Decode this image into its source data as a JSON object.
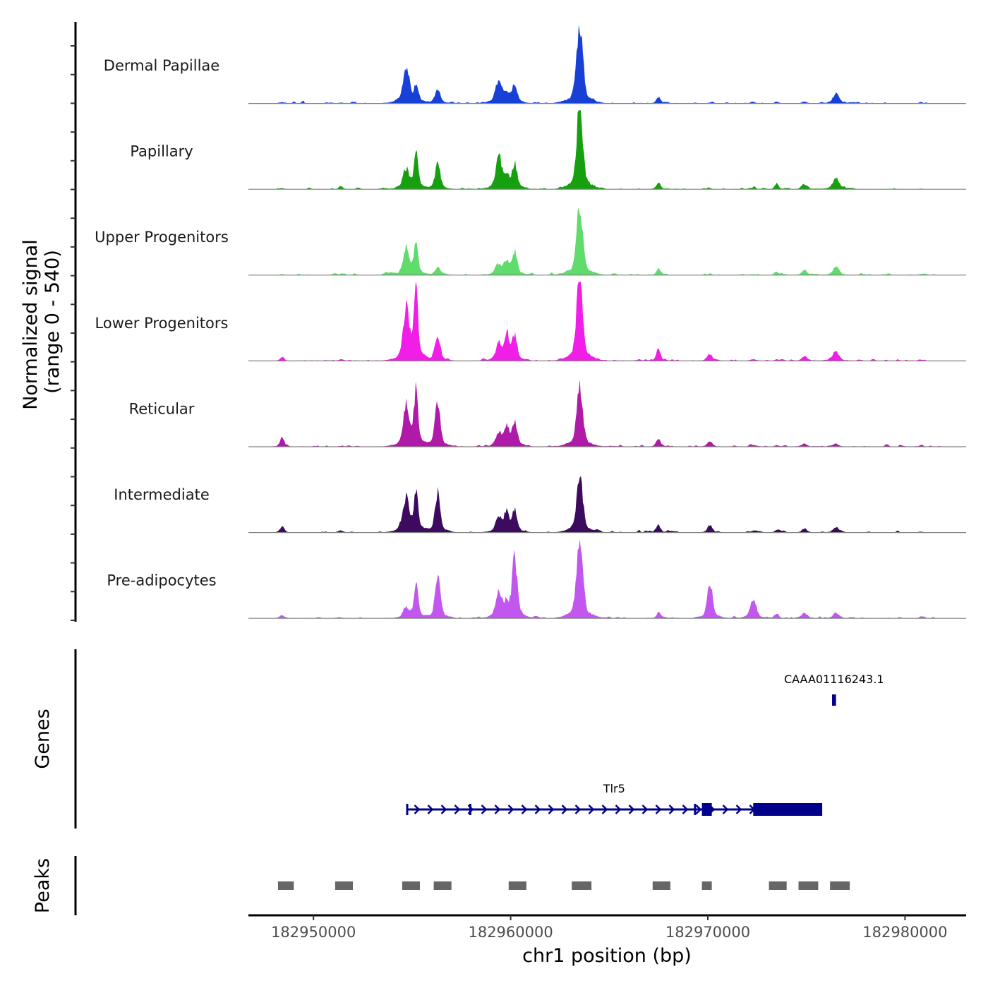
{
  "chart_data": {
    "type": "area",
    "title": "",
    "region": {
      "chrom": "chr1",
      "start": 182946700,
      "end": 182983100
    },
    "xlabel": "chr1 position (bp)",
    "ylabel": "Normalized signal",
    "ylabel_range": "(range 0 - 540)",
    "ylim": [
      0,
      540
    ],
    "x_ticks": [
      182950000,
      182960000,
      182970000,
      182980000
    ],
    "x_tick_labels": [
      "182950000",
      "182960000",
      "182970000",
      "182980000"
    ],
    "peak_centers_bp": [
      182948400,
      182951400,
      182954700,
      182955200,
      182956300,
      182959400,
      182959800,
      182960200,
      182963500,
      182967500,
      182970100,
      182972300,
      182973500,
      182974900,
      182976500,
      182980800
    ],
    "series": [
      {
        "name": "Dermal Papillae",
        "color": "#1740d6",
        "values": [
          8,
          5,
          230,
          100,
          90,
          140,
          60,
          120,
          490,
          40,
          5,
          5,
          10,
          10,
          55,
          4
        ]
      },
      {
        "name": "Papillary",
        "color": "#16a00f",
        "values": [
          8,
          6,
          120,
          230,
          150,
          180,
          80,
          150,
          500,
          40,
          5,
          5,
          30,
          30,
          70,
          4
        ]
      },
      {
        "name": "Upper Progenitors",
        "color": "#5fdc6b",
        "values": [
          6,
          5,
          160,
          180,
          50,
          60,
          80,
          140,
          430,
          40,
          5,
          5,
          15,
          30,
          50,
          6
        ]
      },
      {
        "name": "Lower Progenitors",
        "color": "#f11ee7",
        "values": [
          20,
          10,
          310,
          440,
          150,
          100,
          170,
          150,
          510,
          70,
          40,
          10,
          10,
          30,
          55,
          8
        ]
      },
      {
        "name": "Reticular",
        "color": "#b01aa8",
        "values": [
          55,
          5,
          250,
          330,
          270,
          80,
          130,
          150,
          360,
          45,
          35,
          10,
          10,
          20,
          15,
          8
        ]
      },
      {
        "name": "Intermediate",
        "color": "#3c0a5e",
        "values": [
          35,
          10,
          210,
          250,
          240,
          90,
          130,
          140,
          340,
          45,
          40,
          10,
          15,
          25,
          30,
          6
        ]
      },
      {
        "name": "Pre-adipocytes",
        "color": "#c157ef",
        "values": [
          20,
          5,
          60,
          210,
          250,
          150,
          70,
          360,
          490,
          35,
          220,
          110,
          25,
          30,
          30,
          10
        ]
      }
    ],
    "genes": [
      {
        "name": "Tlr5",
        "start": 182954700,
        "end": 182975800,
        "strand": "+",
        "exons": [
          [
            182954700,
            182954800
          ],
          [
            182957900,
            182958000
          ],
          [
            182969300,
            182969400
          ],
          [
            182969700,
            182970200
          ],
          [
            182972300,
            182975800
          ]
        ]
      },
      {
        "name": "CAAA01116243.1",
        "start": 182976300,
        "end": 182976500,
        "strand": "-",
        "exons": [
          [
            182976300,
            182976500
          ]
        ]
      }
    ],
    "peaks": [
      [
        182948200,
        182949000
      ],
      [
        182951100,
        182952000
      ],
      [
        182954500,
        182955400
      ],
      [
        182956100,
        182957000
      ],
      [
        182959900,
        182960800
      ],
      [
        182963100,
        182964100
      ],
      [
        182967200,
        182968100
      ],
      [
        182969700,
        182970200
      ],
      [
        182973100,
        182974000
      ],
      [
        182974600,
        182975600
      ],
      [
        182976200,
        182977200
      ]
    ],
    "panel_labels": [
      "Genes",
      "Peaks"
    ],
    "colors": {
      "gene": "#00008b",
      "peak": "#666666",
      "baseline": "#808080"
    }
  }
}
